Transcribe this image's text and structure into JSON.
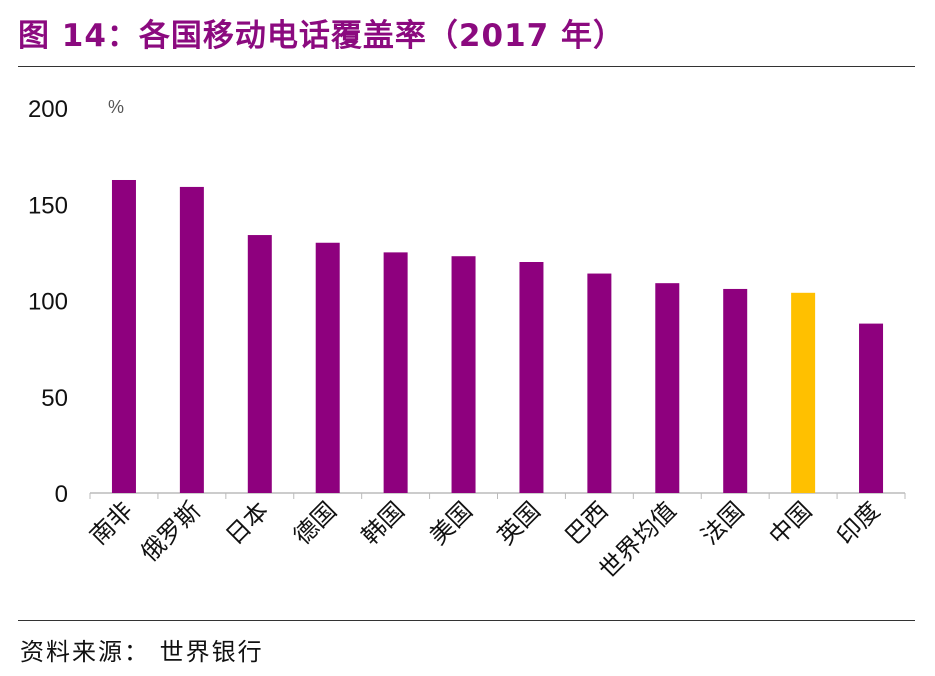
{
  "title": "图 14：各国移动电话覆盖率（2017 年）",
  "source": "资料来源：  世界银行",
  "chart_data": {
    "type": "bar",
    "title": "",
    "ylabel": "%",
    "xlabel": "",
    "ylim": [
      0,
      200
    ],
    "yticks": [
      0,
      50,
      100,
      150,
      200
    ],
    "grid": false,
    "categories": [
      "南非",
      "俄罗斯",
      "日本",
      "德国",
      "韩国",
      "美国",
      "英国",
      "巴西",
      "世界均值",
      "法国",
      "中国",
      "印度"
    ],
    "values": [
      162.6,
      159,
      134,
      130,
      125,
      123,
      120,
      114,
      109,
      106,
      104,
      88
    ],
    "colors": {
      "default": "#8e007e",
      "highlight": "#ffc000"
    },
    "highlight_category": "中国"
  }
}
